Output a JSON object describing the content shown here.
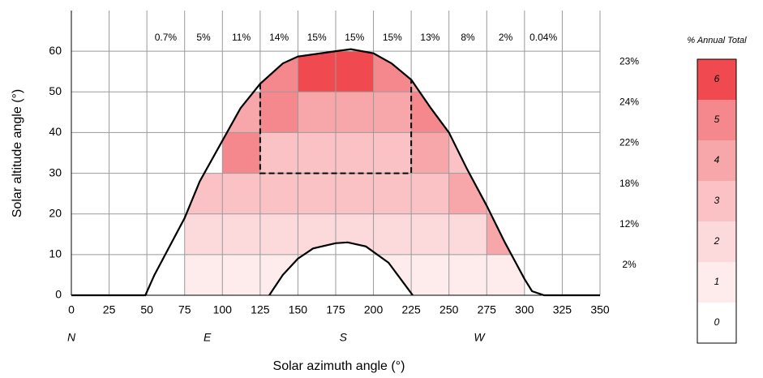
{
  "chart_data": {
    "type": "heatmap",
    "xlabel": "Solar azimuth angle (°)",
    "ylabel": "Solar altitude angle (°)",
    "xlim": [
      0,
      350
    ],
    "ylim": [
      0,
      70
    ],
    "xticks": [
      0,
      25,
      50,
      75,
      100,
      125,
      150,
      175,
      200,
      225,
      250,
      275,
      300,
      325,
      350
    ],
    "yticks": [
      0,
      10,
      20,
      30,
      40,
      50,
      60
    ],
    "grid": true,
    "compass": [
      {
        "value": 0,
        "label": "N"
      },
      {
        "value": 90,
        "label": "E"
      },
      {
        "value": 180,
        "label": "S"
      },
      {
        "value": 270,
        "label": "W"
      }
    ],
    "x_bins": [
      50,
      75,
      100,
      125,
      150,
      175,
      200,
      225,
      250,
      275,
      300,
      325
    ],
    "y_bins": [
      0,
      10,
      20,
      30,
      40,
      50,
      60
    ],
    "z": [
      [
        0,
        1,
        1,
        1,
        1,
        1,
        1,
        1,
        1,
        1,
        0
      ],
      [
        0,
        2,
        2,
        2,
        2,
        2,
        2,
        2,
        2,
        4,
        0
      ],
      [
        0,
        3,
        3,
        3,
        3,
        3,
        3,
        3,
        4,
        3,
        0
      ],
      [
        0,
        0,
        5,
        3,
        3,
        3,
        3,
        4,
        3,
        0,
        0
      ],
      [
        0,
        0,
        4,
        5,
        4,
        4,
        4,
        5,
        0,
        0,
        0
      ],
      [
        0,
        0,
        0,
        5,
        6,
        6,
        5,
        4,
        0,
        0,
        0
      ]
    ],
    "column_totals": {
      "values": [
        0.7,
        5,
        11,
        14,
        15,
        15,
        15,
        13,
        8,
        2,
        0.04
      ],
      "value_labels": [
        "0.7%",
        "5%",
        "11%",
        "14%",
        "15%",
        "15%",
        "15%",
        "13%",
        "8%",
        "2%",
        "0.04%"
      ]
    },
    "row_totals": {
      "values": [
        2,
        12,
        18,
        22,
        24,
        23
      ],
      "value_labels": [
        "2%",
        "12%",
        "18%",
        "22%",
        "24%",
        "23%"
      ]
    },
    "envelope": {
      "outer": {
        "x": [
          0,
          49,
          55,
          65,
          75,
          85,
          100,
          112,
          125,
          140,
          150,
          175,
          185,
          200,
          212,
          225,
          238,
          250,
          262,
          275,
          287,
          300,
          305,
          313,
          350
        ],
        "y": [
          0,
          0,
          5,
          12,
          19,
          28,
          38,
          46,
          52,
          57,
          58.7,
          60,
          60.5,
          59.5,
          57,
          53,
          46,
          40,
          31,
          22,
          13,
          4,
          1,
          0,
          0
        ]
      },
      "inner": {
        "x": [
          131,
          140,
          150,
          160,
          175,
          183,
          195,
          210,
          220,
          226
        ],
        "y": [
          0,
          5,
          9,
          11.5,
          12.8,
          13,
          12,
          8,
          3,
          0
        ]
      }
    },
    "highlight": {
      "x": [
        125,
        225
      ],
      "y_bottom": 30
    },
    "colorbar": {
      "title": "% Annual Total",
      "levels": [
        0,
        1,
        2,
        3,
        4,
        5,
        6
      ],
      "colors": [
        "#ffffff",
        "#feeced",
        "#fcdadc",
        "#fac2c4",
        "#f7a6a9",
        "#f4888c",
        "#f04a50"
      ]
    }
  }
}
